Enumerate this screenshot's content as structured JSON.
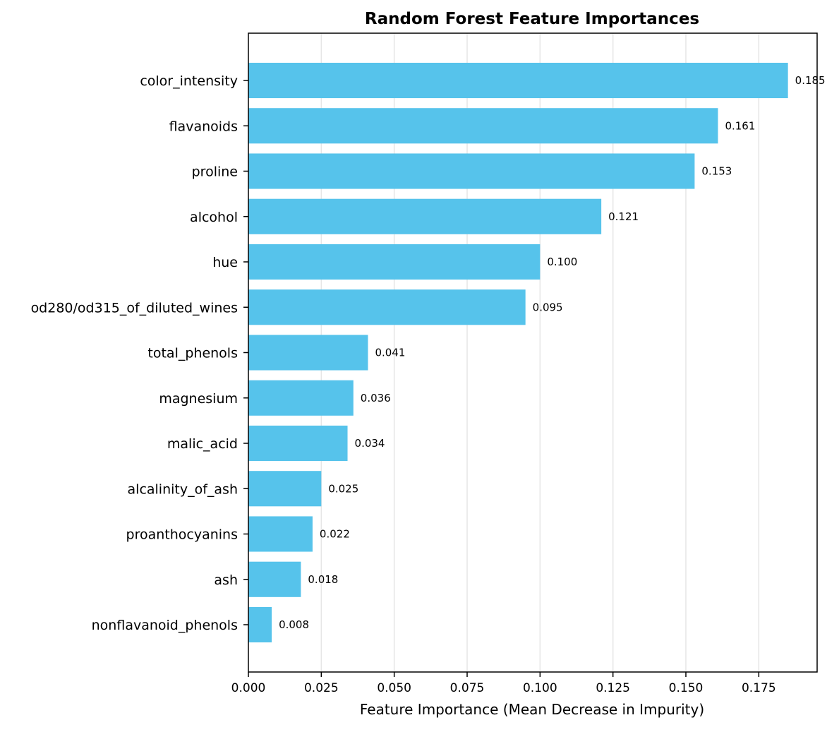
{
  "chart_data": {
    "type": "bar",
    "orientation": "horizontal",
    "title": "Random Forest Feature Importances",
    "xlabel": "Feature Importance (Mean Decrease in Impurity)",
    "ylabel": "",
    "xlim": [
      0,
      0.195
    ],
    "xticks": [
      0.0,
      0.025,
      0.05,
      0.075,
      0.1,
      0.125,
      0.15,
      0.175
    ],
    "xtick_labels": [
      "0.000",
      "0.025",
      "0.050",
      "0.075",
      "0.100",
      "0.125",
      "0.150",
      "0.175"
    ],
    "grid": "vertical",
    "bar_color": "#56C3EB",
    "categories": [
      "color_intensity",
      "flavanoids",
      "proline",
      "alcohol",
      "hue",
      "od280/od315_of_diluted_wines",
      "total_phenols",
      "magnesium",
      "malic_acid",
      "alcalinity_of_ash",
      "proanthocyanins",
      "ash",
      "nonflavanoid_phenols"
    ],
    "values": [
      0.185,
      0.161,
      0.153,
      0.121,
      0.1,
      0.095,
      0.041,
      0.036,
      0.034,
      0.025,
      0.022,
      0.018,
      0.008
    ],
    "value_labels": [
      "0.185",
      "0.161",
      "0.153",
      "0.121",
      "0.100",
      "0.095",
      "0.041",
      "0.036",
      "0.034",
      "0.025",
      "0.022",
      "0.018",
      "0.008"
    ]
  }
}
